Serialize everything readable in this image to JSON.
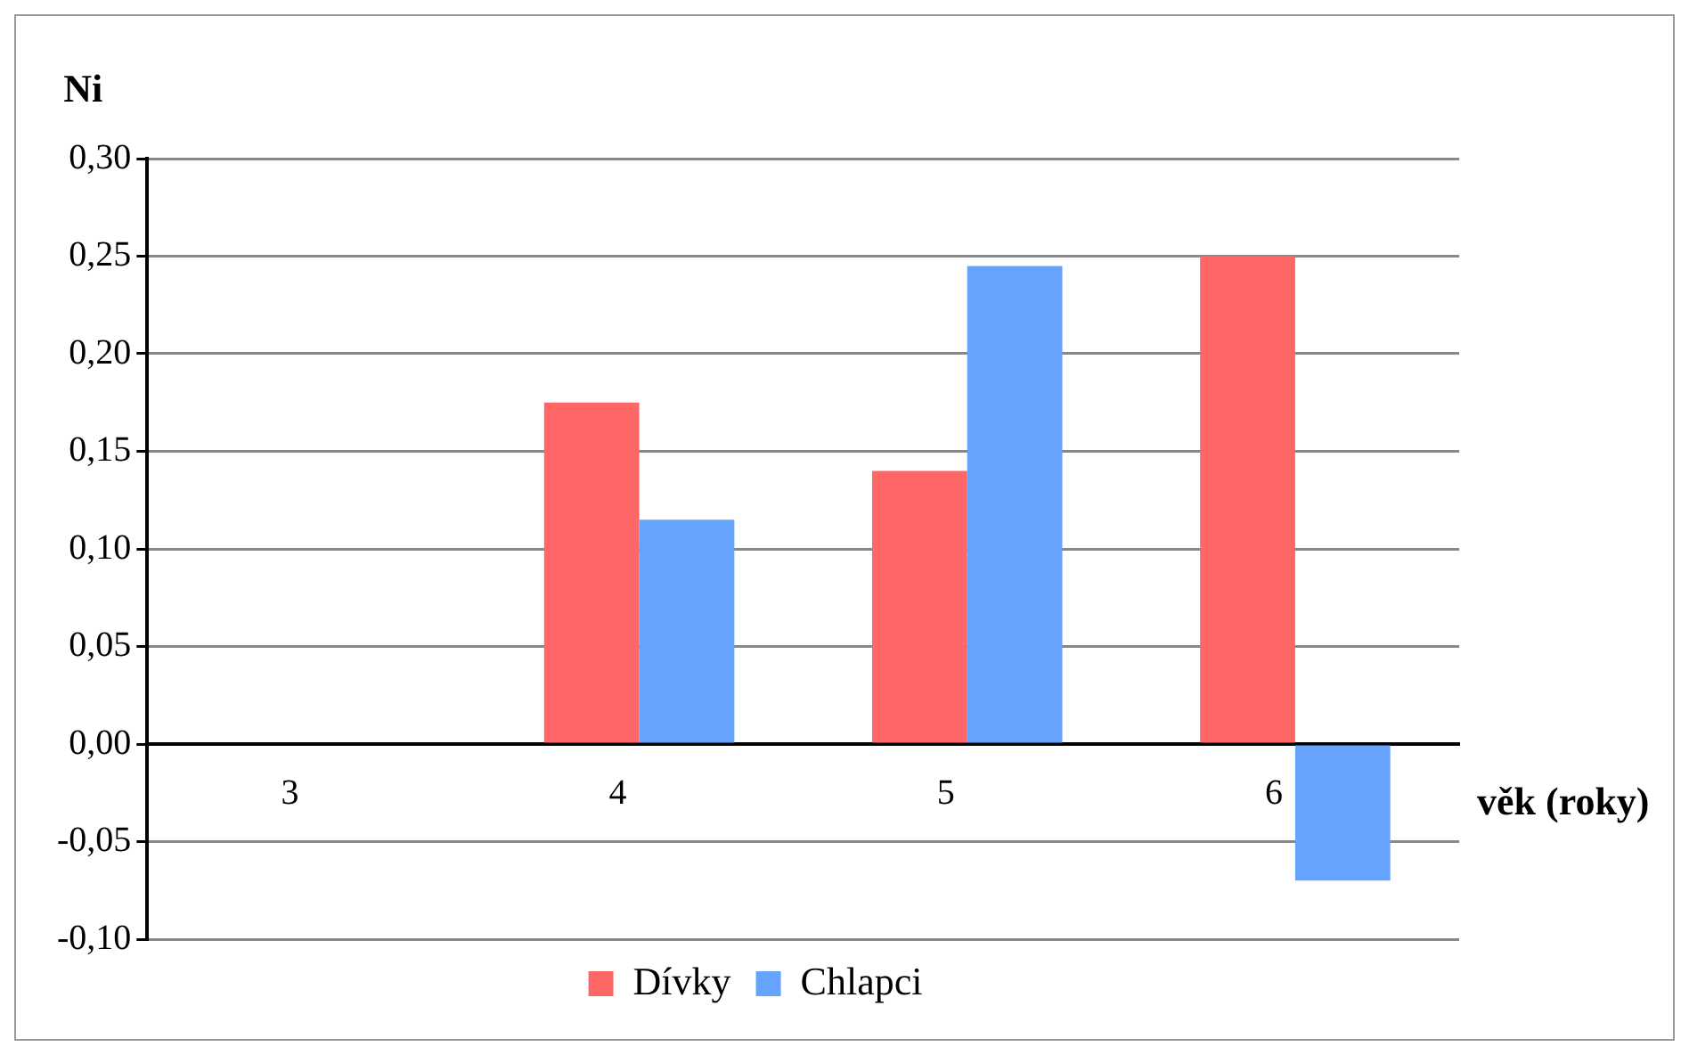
{
  "chart_data": {
    "type": "bar",
    "xlabel": "věk (roky)",
    "ylabel": "Ni",
    "categories": [
      "3",
      "4",
      "5",
      "6"
    ],
    "series": [
      {
        "name": "Dívky",
        "color": "#ff6666",
        "values": [
          0,
          0.175,
          0.14,
          0.25
        ]
      },
      {
        "name": "Chlapci",
        "color": "#66a3ff",
        "values": [
          0,
          0.115,
          0.245,
          -0.07
        ]
      }
    ],
    "ylim": [
      -0.1,
      0.3
    ],
    "yticks": [
      {
        "value": -0.1,
        "label": "-0,10"
      },
      {
        "value": -0.05,
        "label": "-0,05"
      },
      {
        "value": 0,
        "label": "0,00"
      },
      {
        "value": 0.05,
        "label": "0,05"
      },
      {
        "value": 0.1,
        "label": "0,10"
      },
      {
        "value": 0.15,
        "label": "0,15"
      },
      {
        "value": 0.2,
        "label": "0,20"
      },
      {
        "value": 0.25,
        "label": "0,25"
      },
      {
        "value": 0.3,
        "label": "0,30"
      }
    ],
    "grid": "y",
    "legend": "bottom"
  }
}
